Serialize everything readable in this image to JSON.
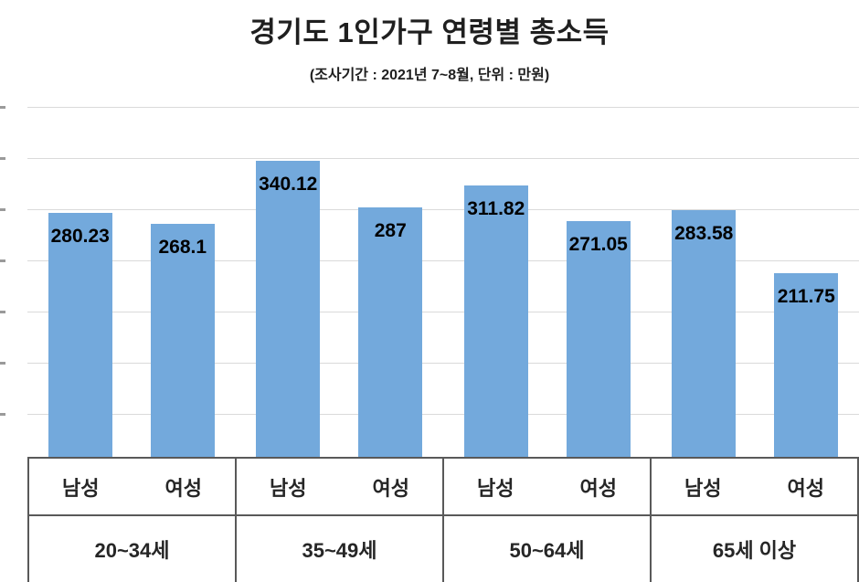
{
  "colors": {
    "bar": "#73a9dc",
    "gridline": "#dadada",
    "axis_border": "#595959",
    "title_text": "#1f1f1f",
    "value_label_text": "#000000",
    "axis_text": "#262626"
  },
  "chart_data": {
    "type": "bar",
    "title": "경기도 1인가구 연령별 총소득",
    "subtitle": "(조사기간 : 2021년 7~8월, 단위 : 만원)",
    "categories": [
      "20~34세",
      "35~49세",
      "50~64세",
      "65세 이상"
    ],
    "series": [
      {
        "name": "남성",
        "values": [
          280.23,
          340.12,
          311.82,
          283.58
        ]
      },
      {
        "name": "여성",
        "values": [
          268.1,
          287,
          271.05,
          211.75
        ]
      }
    ],
    "ylim": [
      0,
      410
    ],
    "grid": true,
    "legend_position": "none",
    "value_label_position": "inside-end",
    "unit": "만원"
  }
}
